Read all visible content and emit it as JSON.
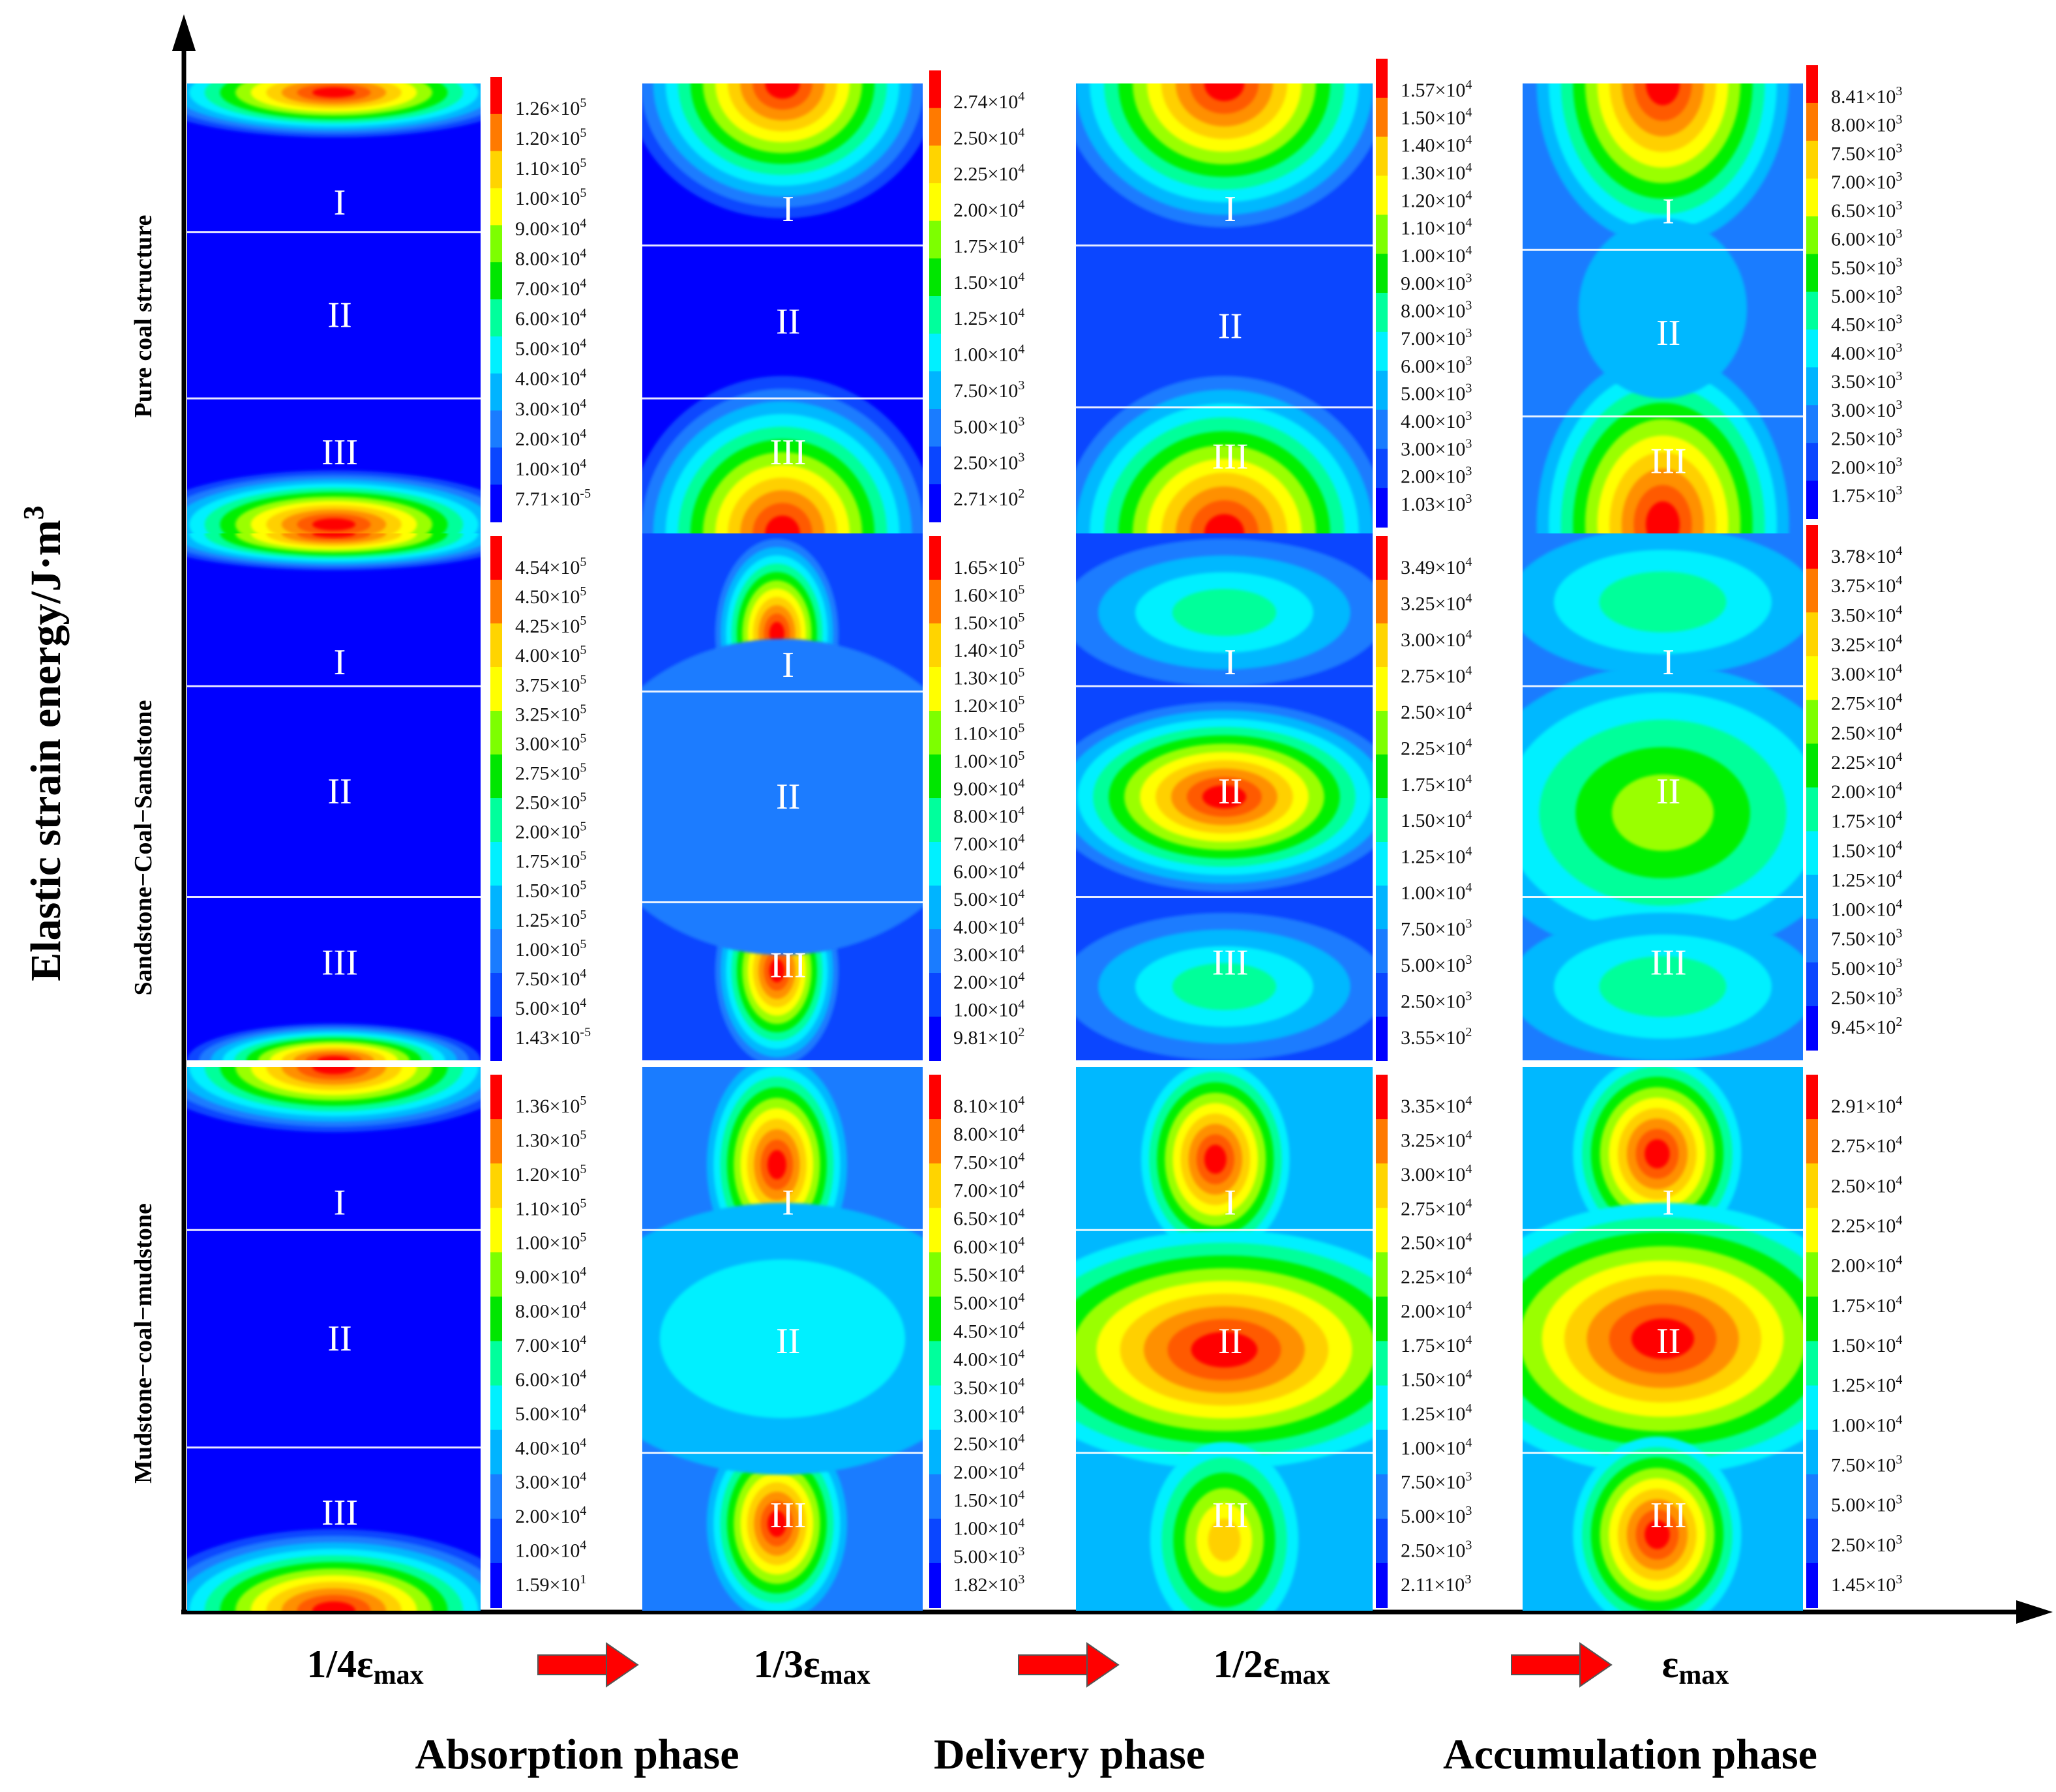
{
  "figure": {
    "y_axis_title": "Elastic strain energy/J·m",
    "y_axis_exponent": "3",
    "rows": [
      "Pure coal structure",
      "Sandstone−Coal−Sandstone",
      "Mudstone−coal−mudstone"
    ],
    "columns": [
      {
        "prefix": "1/4ε",
        "sub": "max"
      },
      {
        "prefix": "1/3ε",
        "sub": "max"
      },
      {
        "prefix": "1/2ε",
        "sub": "max"
      },
      {
        "prefix": "ε",
        "sub": "max"
      }
    ],
    "phases": [
      "Absorption phase",
      "Delivery phase",
      "Accumulation phase"
    ],
    "zones": [
      "I",
      "II",
      "III"
    ],
    "palette": [
      "#0000ff",
      "#0b46ff",
      "#1a7cff",
      "#00b8ff",
      "#00f0ff",
      "#00ff9a",
      "#00f000",
      "#9aff00",
      "#ffff00",
      "#ffd000",
      "#ff9000",
      "#ff5a00",
      "#ff0000"
    ],
    "arrow_color": "#ff0000",
    "colorbar_spectrum": [
      "#ff0000",
      "#ff7a00",
      "#ffd400",
      "#ffff00",
      "#7dff00",
      "#00e600",
      "#00ff9c",
      "#00f0ff",
      "#00b4ff",
      "#1a7cff",
      "#0a46ff",
      "#0000ff"
    ],
    "scales": [
      [
        [
          "1.26×10",
          "5"
        ],
        [
          "1.20×10",
          "5"
        ],
        [
          "1.10×10",
          "5"
        ],
        [
          "1.00×10",
          "5"
        ],
        [
          "9.00×10",
          "4"
        ],
        [
          "8.00×10",
          "4"
        ],
        [
          "7.00×10",
          "4"
        ],
        [
          "6.00×10",
          "4"
        ],
        [
          "5.00×10",
          "4"
        ],
        [
          "4.00×10",
          "4"
        ],
        [
          "3.00×10",
          "4"
        ],
        [
          "2.00×10",
          "4"
        ],
        [
          "1.00×10",
          "4"
        ],
        [
          "7.71×10",
          "-5"
        ]
      ],
      [
        [
          "2.74×10",
          "4"
        ],
        [
          "2.50×10",
          "4"
        ],
        [
          "2.25×10",
          "4"
        ],
        [
          "2.00×10",
          "4"
        ],
        [
          "1.75×10",
          "4"
        ],
        [
          "1.50×10",
          "4"
        ],
        [
          "1.25×10",
          "4"
        ],
        [
          "1.00×10",
          "4"
        ],
        [
          "7.50×10",
          "3"
        ],
        [
          "5.00×10",
          "3"
        ],
        [
          "2.50×10",
          "3"
        ],
        [
          "2.71×10",
          "2"
        ]
      ],
      [
        [
          "1.57×10",
          "4"
        ],
        [
          "1.50×10",
          "4"
        ],
        [
          "1.40×10",
          "4"
        ],
        [
          "1.30×10",
          "4"
        ],
        [
          "1.20×10",
          "4"
        ],
        [
          "1.10×10",
          "4"
        ],
        [
          "1.00×10",
          "4"
        ],
        [
          "9.00×10",
          "3"
        ],
        [
          "8.00×10",
          "3"
        ],
        [
          "7.00×10",
          "3"
        ],
        [
          "6.00×10",
          "3"
        ],
        [
          "5.00×10",
          "3"
        ],
        [
          "4.00×10",
          "3"
        ],
        [
          "3.00×10",
          "3"
        ],
        [
          "2.00×10",
          "3"
        ],
        [
          "1.03×10",
          "3"
        ]
      ],
      [
        [
          "8.41×10",
          "3"
        ],
        [
          "8.00×10",
          "3"
        ],
        [
          "7.50×10",
          "3"
        ],
        [
          "7.00×10",
          "3"
        ],
        [
          "6.50×10",
          "3"
        ],
        [
          "6.00×10",
          "3"
        ],
        [
          "5.50×10",
          "3"
        ],
        [
          "5.00×10",
          "3"
        ],
        [
          "4.50×10",
          "3"
        ],
        [
          "4.00×10",
          "3"
        ],
        [
          "3.50×10",
          "3"
        ],
        [
          "3.00×10",
          "3"
        ],
        [
          "2.50×10",
          "3"
        ],
        [
          "2.00×10",
          "3"
        ],
        [
          "1.75×10",
          "3"
        ]
      ],
      [
        [
          "4.54×10",
          "5"
        ],
        [
          "4.50×10",
          "5"
        ],
        [
          "4.25×10",
          "5"
        ],
        [
          "4.00×10",
          "5"
        ],
        [
          "3.75×10",
          "5"
        ],
        [
          "3.25×10",
          "5"
        ],
        [
          "3.00×10",
          "5"
        ],
        [
          "2.75×10",
          "5"
        ],
        [
          "2.50×10",
          "5"
        ],
        [
          "2.00×10",
          "5"
        ],
        [
          "1.75×10",
          "5"
        ],
        [
          "1.50×10",
          "5"
        ],
        [
          "1.25×10",
          "5"
        ],
        [
          "1.00×10",
          "5"
        ],
        [
          "7.50×10",
          "4"
        ],
        [
          "5.00×10",
          "4"
        ],
        [
          "1.43×10",
          "-5"
        ]
      ],
      [
        [
          "1.65×10",
          "5"
        ],
        [
          "1.60×10",
          "5"
        ],
        [
          "1.50×10",
          "5"
        ],
        [
          "1.40×10",
          "5"
        ],
        [
          "1.30×10",
          "5"
        ],
        [
          "1.20×10",
          "5"
        ],
        [
          "1.10×10",
          "5"
        ],
        [
          "1.00×10",
          "5"
        ],
        [
          "9.00×10",
          "4"
        ],
        [
          "8.00×10",
          "4"
        ],
        [
          "7.00×10",
          "4"
        ],
        [
          "6.00×10",
          "4"
        ],
        [
          "5.00×10",
          "4"
        ],
        [
          "4.00×10",
          "4"
        ],
        [
          "3.00×10",
          "4"
        ],
        [
          "2.00×10",
          "4"
        ],
        [
          "1.00×10",
          "4"
        ],
        [
          "9.81×10",
          "2"
        ]
      ],
      [
        [
          "3.49×10",
          "4"
        ],
        [
          "3.25×10",
          "4"
        ],
        [
          "3.00×10",
          "4"
        ],
        [
          "2.75×10",
          "4"
        ],
        [
          "2.50×10",
          "4"
        ],
        [
          "2.25×10",
          "4"
        ],
        [
          "1.75×10",
          "4"
        ],
        [
          "1.50×10",
          "4"
        ],
        [
          "1.25×10",
          "4"
        ],
        [
          "1.00×10",
          "4"
        ],
        [
          "7.50×10",
          "3"
        ],
        [
          "5.00×10",
          "3"
        ],
        [
          "2.50×10",
          "3"
        ],
        [
          "3.55×10",
          "2"
        ]
      ],
      [
        [
          "3.78×10",
          "4"
        ],
        [
          "3.75×10",
          "4"
        ],
        [
          "3.50×10",
          "4"
        ],
        [
          "3.25×10",
          "4"
        ],
        [
          "3.00×10",
          "4"
        ],
        [
          "2.75×10",
          "4"
        ],
        [
          "2.50×10",
          "4"
        ],
        [
          "2.25×10",
          "4"
        ],
        [
          "2.00×10",
          "4"
        ],
        [
          "1.75×10",
          "4"
        ],
        [
          "1.50×10",
          "4"
        ],
        [
          "1.25×10",
          "4"
        ],
        [
          "1.00×10",
          "4"
        ],
        [
          "7.50×10",
          "3"
        ],
        [
          "5.00×10",
          "3"
        ],
        [
          "2.50×10",
          "3"
        ],
        [
          "9.45×10",
          "2"
        ]
      ],
      [
        [
          "1.36×10",
          "5"
        ],
        [
          "1.30×10",
          "5"
        ],
        [
          "1.20×10",
          "5"
        ],
        [
          "1.10×10",
          "5"
        ],
        [
          "1.00×10",
          "5"
        ],
        [
          "9.00×10",
          "4"
        ],
        [
          "8.00×10",
          "4"
        ],
        [
          "7.00×10",
          "4"
        ],
        [
          "6.00×10",
          "4"
        ],
        [
          "5.00×10",
          "4"
        ],
        [
          "4.00×10",
          "4"
        ],
        [
          "3.00×10",
          "4"
        ],
        [
          "2.00×10",
          "4"
        ],
        [
          "1.00×10",
          "4"
        ],
        [
          "1.59×10",
          "1"
        ]
      ],
      [
        [
          "8.10×10",
          "4"
        ],
        [
          "8.00×10",
          "4"
        ],
        [
          "7.50×10",
          "4"
        ],
        [
          "7.00×10",
          "4"
        ],
        [
          "6.50×10",
          "4"
        ],
        [
          "6.00×10",
          "4"
        ],
        [
          "5.50×10",
          "4"
        ],
        [
          "5.00×10",
          "4"
        ],
        [
          "4.50×10",
          "4"
        ],
        [
          "4.00×10",
          "4"
        ],
        [
          "3.50×10",
          "4"
        ],
        [
          "3.00×10",
          "4"
        ],
        [
          "2.50×10",
          "4"
        ],
        [
          "2.00×10",
          "4"
        ],
        [
          "1.50×10",
          "4"
        ],
        [
          "1.00×10",
          "4"
        ],
        [
          "5.00×10",
          "3"
        ],
        [
          "1.82×10",
          "3"
        ]
      ],
      [
        [
          "3.35×10",
          "4"
        ],
        [
          "3.25×10",
          "4"
        ],
        [
          "3.00×10",
          "4"
        ],
        [
          "2.75×10",
          "4"
        ],
        [
          "2.50×10",
          "4"
        ],
        [
          "2.25×10",
          "4"
        ],
        [
          "2.00×10",
          "4"
        ],
        [
          "1.75×10",
          "4"
        ],
        [
          "1.50×10",
          "4"
        ],
        [
          "1.25×10",
          "4"
        ],
        [
          "1.00×10",
          "4"
        ],
        [
          "7.50×10",
          "3"
        ],
        [
          "5.00×10",
          "3"
        ],
        [
          "2.50×10",
          "3"
        ],
        [
          "2.11×10",
          "3"
        ]
      ],
      [
        [
          "2.91×10",
          "4"
        ],
        [
          "2.75×10",
          "4"
        ],
        [
          "2.50×10",
          "4"
        ],
        [
          "2.25×10",
          "4"
        ],
        [
          "2.00×10",
          "4"
        ],
        [
          "1.75×10",
          "4"
        ],
        [
          "1.50×10",
          "4"
        ],
        [
          "1.25×10",
          "4"
        ],
        [
          "1.00×10",
          "4"
        ],
        [
          "7.50×10",
          "3"
        ],
        [
          "5.00×10",
          "3"
        ],
        [
          "2.50×10",
          "3"
        ],
        [
          "1.45×10",
          "3"
        ]
      ]
    ]
  }
}
